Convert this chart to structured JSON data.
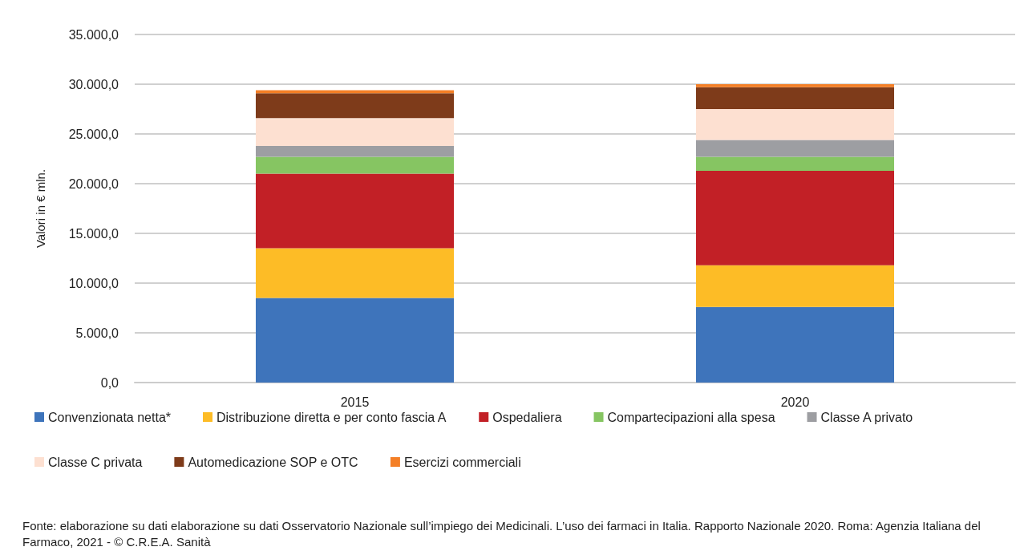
{
  "chart_data": {
    "type": "bar",
    "stacked": true,
    "ylabel": "Valori in € mln.",
    "categories": [
      "2015",
      "2020"
    ],
    "series": [
      {
        "name": "Convenzionata netta*",
        "color": "#3e74bb",
        "values": [
          8500,
          7600
        ]
      },
      {
        "name": "Distribuzione diretta e per conto fascia A",
        "color": "#fdbc26",
        "values": [
          5000,
          4200
        ]
      },
      {
        "name": "Ospedaliera",
        "color": "#c22026",
        "values": [
          7500,
          9500
        ]
      },
      {
        "name": "Compartecipazioni alla spesa",
        "color": "#86c562",
        "values": [
          1700,
          1400
        ]
      },
      {
        "name": "Classe A privato",
        "color": "#9d9ea2",
        "values": [
          1100,
          1700
        ]
      },
      {
        "name": "Classe C privata",
        "color": "#fde0d1",
        "values": [
          2800,
          3100
        ]
      },
      {
        "name": "Automedicazione SOP e OTC",
        "color": "#7e3b1a",
        "values": [
          2500,
          2200
        ]
      },
      {
        "name": "Esercizi commerciali",
        "color": "#f47f26",
        "values": [
          300,
          300
        ]
      }
    ],
    "ylim": [
      0,
      35000
    ],
    "yticks": [
      {
        "value": 0,
        "label": "0,0"
      },
      {
        "value": 5000,
        "label": "5.000,0"
      },
      {
        "value": 10000,
        "label": "10.000,0"
      },
      {
        "value": 15000,
        "label": "15.000,0"
      },
      {
        "value": 20000,
        "label": "20.000,0"
      },
      {
        "value": 25000,
        "label": "25.000,0"
      },
      {
        "value": 30000,
        "label": "30.000,0"
      },
      {
        "value": 35000,
        "label": "35.000,0"
      }
    ],
    "grid": "y",
    "legend": "bottom",
    "annotations": [
      "Fonte: elaborazione su dati elaborazione su dati Osservatorio Nazionale sull’impiego dei Medicinali. L’uso dei farmaci in Italia. Rapporto Nazionale 2020. Roma: Agenzia Italiana del Farmaco, 2021 - © C.R.E.A. Sanità"
    ]
  }
}
